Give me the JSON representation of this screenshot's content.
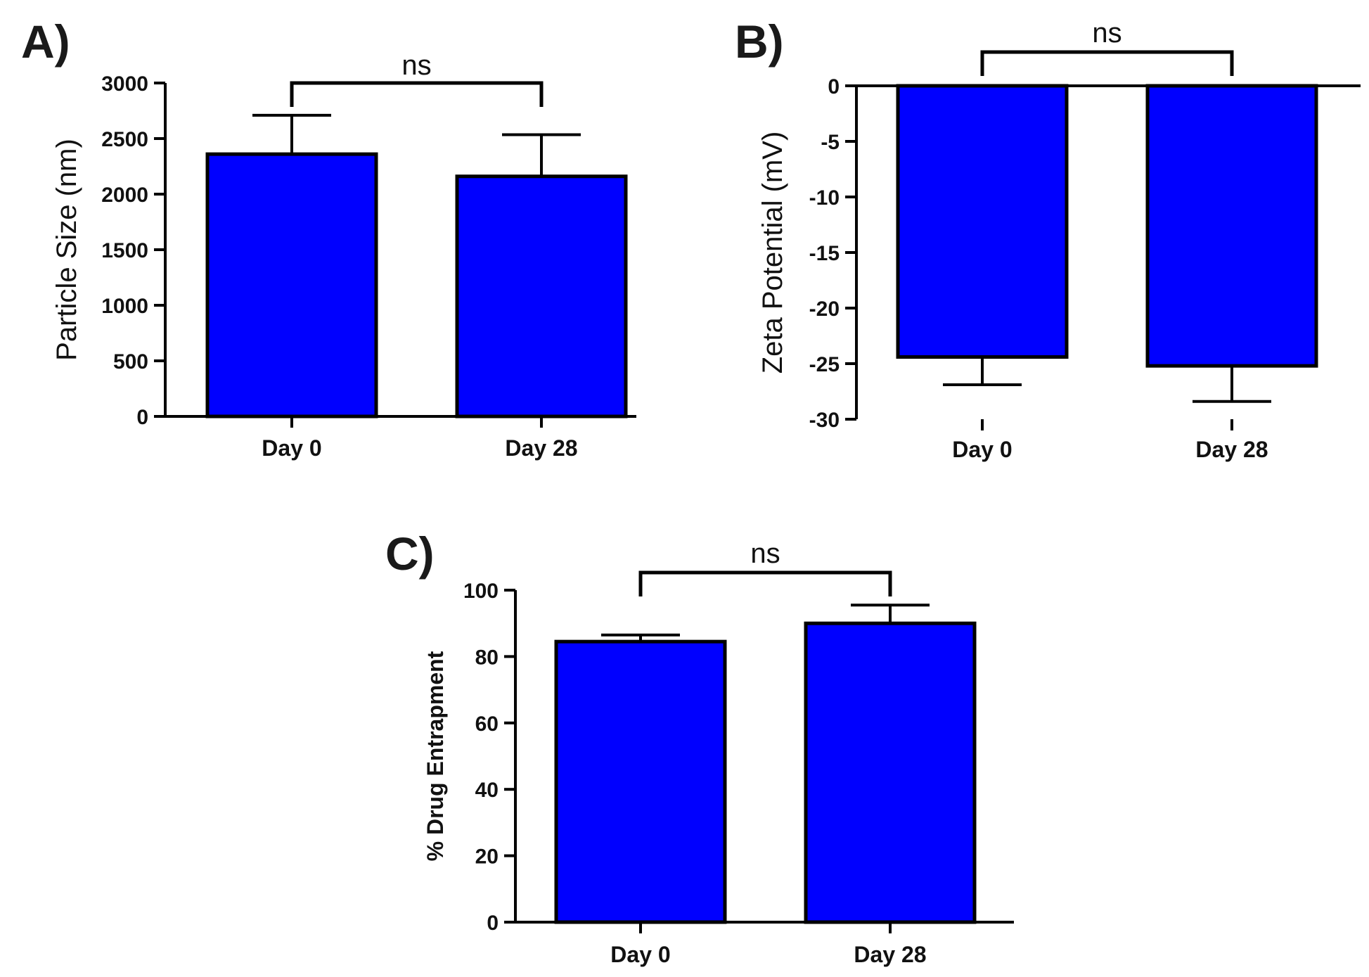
{
  "chart_data": [
    {
      "type": "bar",
      "panel": "A)",
      "categories": [
        "Day 0",
        "Day 28"
      ],
      "values": [
        2360,
        2160
      ],
      "errors": [
        350,
        375
      ],
      "ylabel": "Particle Size (nm)",
      "xlabel": "",
      "ylim": [
        0,
        3000
      ],
      "yticks": [
        0,
        500,
        1000,
        1500,
        2000,
        2500,
        3000
      ],
      "significance": "ns",
      "bar_color": "#0000ff"
    },
    {
      "type": "bar",
      "panel": "B)",
      "categories": [
        "Day 0",
        "Day 28"
      ],
      "values": [
        -24.4,
        -25.2
      ],
      "errors": [
        2.5,
        3.2
      ],
      "ylabel": "Zeta Potential (mV)",
      "xlabel": "",
      "ylim": [
        -30,
        0
      ],
      "yticks": [
        0,
        -5,
        -10,
        -15,
        -20,
        -25,
        -30
      ],
      "significance": "ns",
      "bar_color": "#0000ff"
    },
    {
      "type": "bar",
      "panel": "C)",
      "categories": [
        "Day 0",
        "Day 28"
      ],
      "values": [
        84.5,
        90
      ],
      "errors": [
        2,
        5.5
      ],
      "ylabel": "% Drug Entrapment",
      "xlabel": "",
      "ylim": [
        0,
        100
      ],
      "yticks": [
        0,
        20,
        40,
        60,
        80,
        100
      ],
      "significance": "ns",
      "bar_color": "#0000ff"
    }
  ]
}
